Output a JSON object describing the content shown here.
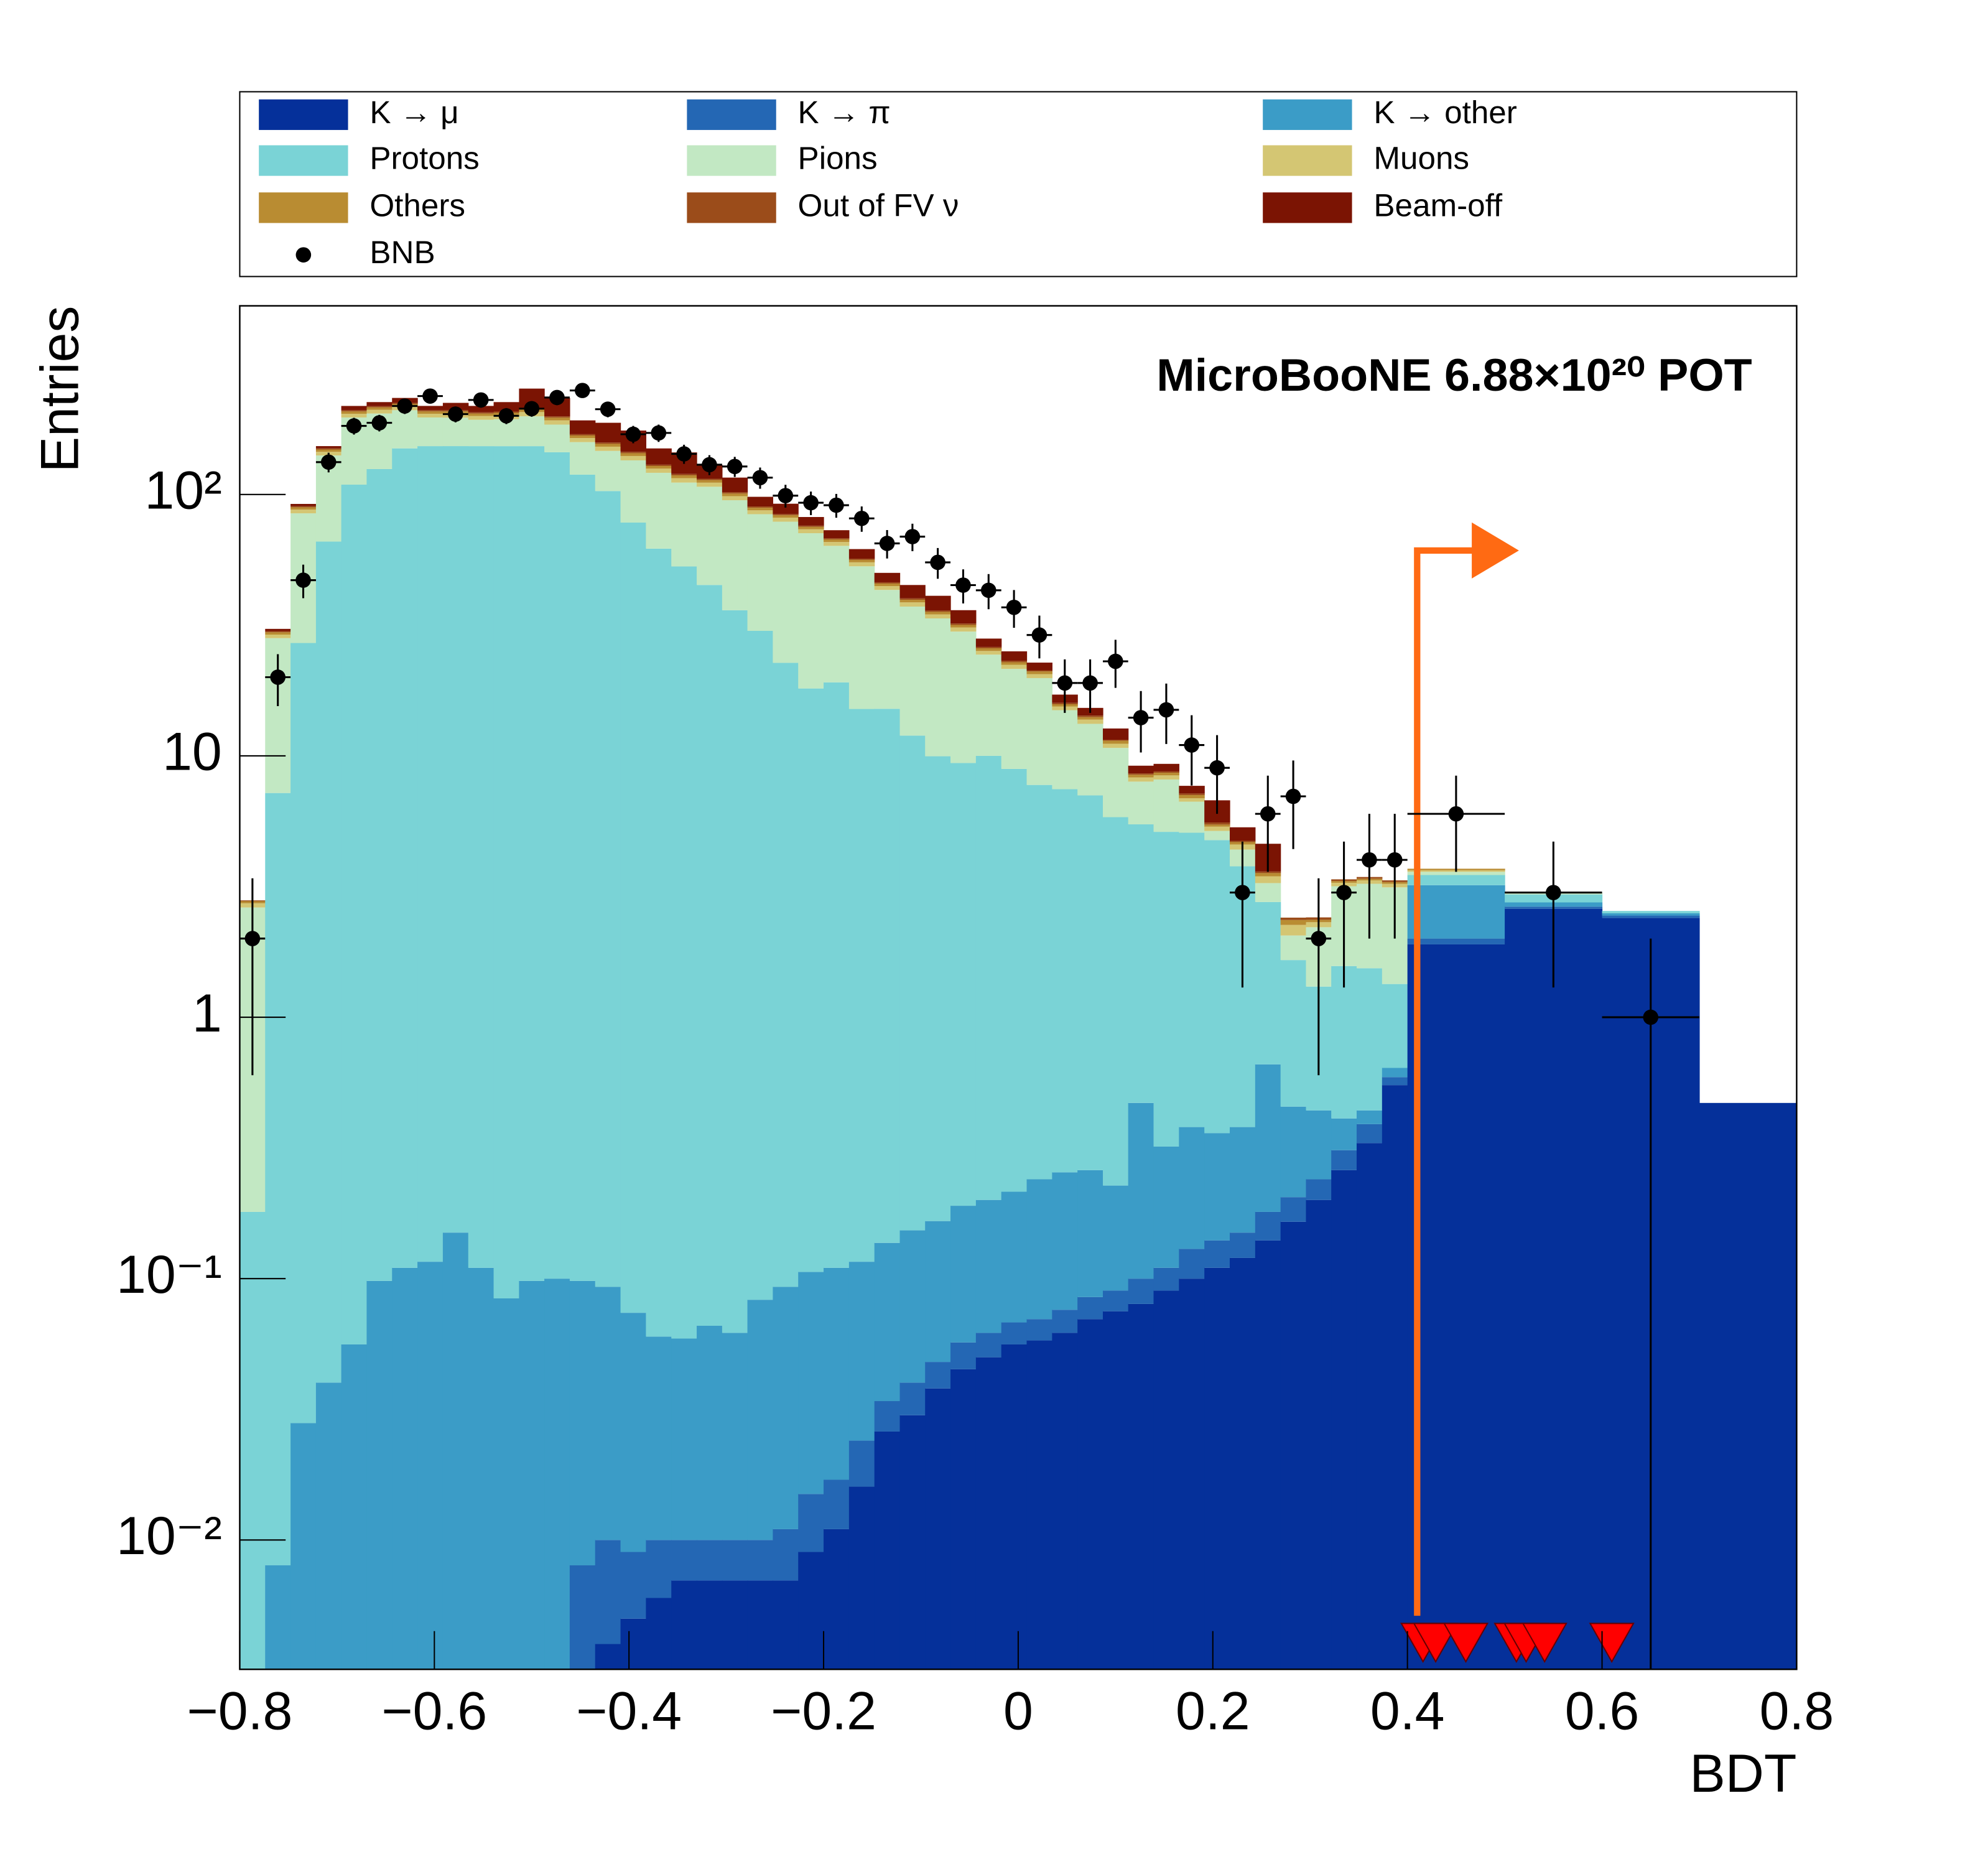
{
  "chart_data": {
    "type": "stacked_histogram",
    "xlabel": "BDT",
    "ylabel": "Entries",
    "annotation": "MicroBooNE 6.88×10²⁰ POT",
    "log_y": true,
    "legend": "top",
    "xlim": [
      -0.8,
      0.8
    ],
    "ylim": [
      0.0032,
      527
    ],
    "xticks": [
      {
        "value": -0.8,
        "label": "−0.8"
      },
      {
        "value": -0.6,
        "label": "−0.6"
      },
      {
        "value": -0.4,
        "label": "−0.4"
      },
      {
        "value": -0.2,
        "label": "−0.2"
      },
      0,
      0.2,
      0.4,
      0.6,
      0.8
    ],
    "yticks": [
      {
        "value": 0.01,
        "label": "10⁻²"
      },
      {
        "value": 0.1,
        "label": "10⁻¹"
      },
      1,
      10,
      {
        "value": 100,
        "label": "10²"
      }
    ],
    "bins": [
      -0.8,
      -0.7739,
      -0.7478,
      -0.7217,
      -0.6957,
      -0.6696,
      -0.6435,
      -0.6174,
      -0.5913,
      -0.5652,
      -0.5391,
      -0.513,
      -0.487,
      -0.4609,
      -0.4348,
      -0.4087,
      -0.3826,
      -0.3565,
      -0.3304,
      -0.3043,
      -0.2783,
      -0.2522,
      -0.2261,
      -0.2,
      -0.1739,
      -0.1478,
      -0.1217,
      -0.0957,
      -0.0696,
      -0.0435,
      -0.0174,
      0.0087,
      0.0348,
      0.0609,
      0.087,
      0.113,
      0.1391,
      0.1652,
      0.1913,
      0.2174,
      0.2435,
      0.2696,
      0.2957,
      0.3217,
      0.3478,
      0.3739,
      0.4,
      0.5,
      0.6,
      0.7,
      0.8
    ],
    "series": [
      {
        "name": "K → μ",
        "color": "#05309a",
        "values": [
          0,
          0,
          0,
          0,
          0,
          0,
          0,
          0,
          0,
          0,
          0,
          0,
          0,
          0.003,
          0.004,
          0.005,
          0.006,
          0.007,
          0.007,
          0.007,
          0.007,
          0.007,
          0.009,
          0.011,
          0.016,
          0.026,
          0.03,
          0.038,
          0.045,
          0.05,
          0.056,
          0.058,
          0.062,
          0.07,
          0.075,
          0.08,
          0.09,
          0.1,
          0.11,
          0.12,
          0.14,
          0.165,
          0.2,
          0.26,
          0.33,
          0.55,
          1.9,
          2.6,
          2.4,
          0.47
        ]
      },
      {
        "name": "K → π",
        "color": "#2467b4",
        "values": [
          0,
          0,
          0,
          0,
          0,
          0,
          0,
          0,
          0,
          0,
          0,
          0.003,
          0,
          0.005,
          0.006,
          0.004,
          0.004,
          0.003,
          0.003,
          0.003,
          0.003,
          0.004,
          0.006,
          0.006,
          0.008,
          0.008,
          0.01,
          0.01,
          0.012,
          0.012,
          0.012,
          0.012,
          0.014,
          0.015,
          0.015,
          0.02,
          0.02,
          0.03,
          0.03,
          0.03,
          0.04,
          0.04,
          0.04,
          0.05,
          0.06,
          0.04,
          0.1,
          0.05,
          0.05,
          0
        ]
      },
      {
        "name": "K → other",
        "color": "#3b9cc7",
        "values": [
          0,
          0.008,
          0.028,
          0.04,
          0.056,
          0.098,
          0.11,
          0.116,
          0.15,
          0.11,
          0.084,
          0.095,
          0.1,
          0.09,
          0.083,
          0.065,
          0.05,
          0.049,
          0.056,
          0.052,
          0.073,
          0.082,
          0.091,
          0.093,
          0.092,
          0.103,
          0.113,
          0.118,
          0.133,
          0.138,
          0.147,
          0.17,
          0.179,
          0.175,
          0.137,
          0.37,
          0.21,
          0.25,
          0.22,
          0.23,
          0.48,
          0.25,
          0.2,
          0.1,
          0.05,
          0.05,
          1.2,
          0.1,
          0.05,
          0
        ]
      },
      {
        "name": "Protons",
        "color": "#7ad3d6",
        "values": [
          0.18,
          7.2,
          27,
          66,
          109,
          125,
          150,
          153,
          153,
          153,
          153,
          153,
          145,
          119,
          103,
          78,
          62,
          53,
          45,
          36,
          30,
          22.6,
          18,
          19,
          15,
          15,
          11.8,
          9.8,
          9.2,
          9.8,
          8.7,
          7.5,
          7.2,
          6.8,
          5.6,
          5.0,
          4.8,
          4.7,
          4.4,
          3.4,
          2.1,
          1.2,
          0.87,
          1.16,
          1.1,
          0.7,
          0.3,
          0.2,
          0.05,
          0
        ]
      },
      {
        "name": "Pions",
        "color": "#c2e8c3",
        "values": [
          2.45,
          21,
          57.7,
          75,
          88,
          79,
          60,
          44,
          43.6,
          40,
          41,
          46,
          40,
          39.5,
          43.7,
          57,
          59,
          58,
          62,
          59,
          54,
          56,
          53,
          44.5,
          38,
          28,
          25.3,
          23.6,
          20.5,
          14.4,
          12.6,
          12.1,
          7.5,
          6.2,
          4.9,
          2.5,
          3.0,
          1.6,
          0.4,
          0.6,
          0.5,
          0.4,
          0.9,
          1.6,
          1.7,
          1.8,
          0.1,
          0.05,
          0,
          0
        ]
      },
      {
        "name": "Muons",
        "color": "#d4c673",
        "values": [
          0.1,
          0.9,
          2.8,
          4.6,
          6.5,
          6.8,
          7,
          6.5,
          6.7,
          6.5,
          6.8,
          7.6,
          7,
          5.8,
          5.6,
          5.3,
          4.5,
          4.4,
          3.9,
          3.5,
          2.9,
          2.8,
          2.5,
          2.2,
          1.9,
          1.5,
          1.4,
          1.2,
          1.1,
          0.8,
          0.8,
          0.7,
          0.5,
          0.5,
          0.4,
          0.3,
          0.3,
          0.2,
          0.2,
          0.2,
          0.2,
          0.2,
          0.1,
          0.1,
          0.1,
          0.1,
          0.05,
          0,
          0,
          0
        ]
      },
      {
        "name": "Others",
        "color": "#b98c32",
        "values": [
          0.05,
          0.6,
          1.8,
          3,
          4.4,
          4.5,
          4.7,
          4.4,
          4.5,
          4.4,
          4.5,
          5,
          4.7,
          3.8,
          3.8,
          3.5,
          3,
          2.9,
          2.6,
          2.3,
          2,
          1.8,
          1.6,
          1.5,
          1.2,
          1,
          0.9,
          0.8,
          0.7,
          0.6,
          0.5,
          0.5,
          0.3,
          0.3,
          0.3,
          0.2,
          0.2,
          0.2,
          0.1,
          0.1,
          0.1,
          0.1,
          0.05,
          0.05,
          0.05,
          0.05,
          0.05,
          0,
          0,
          0
        ]
      },
      {
        "name": "Out of FV ν",
        "color": "#9b4c1a",
        "values": [
          0.02,
          0.3,
          0.9,
          1.5,
          2.2,
          2.3,
          2.3,
          2.2,
          2.2,
          2.2,
          2.3,
          2.5,
          2.3,
          1.9,
          1.9,
          1.8,
          1.5,
          1.5,
          1.3,
          1.2,
          1,
          0.9,
          0.8,
          0.7,
          0.6,
          0.5,
          0.5,
          0.4,
          0.4,
          0.3,
          0.3,
          0.2,
          0.2,
          0.2,
          0.1,
          0.1,
          0.1,
          0.1,
          0.1,
          0.05,
          0.05,
          0.05,
          0.05,
          0.05,
          0.05,
          0.05,
          0,
          0,
          0,
          0
        ]
      },
      {
        "name": "Beam-off",
        "color": "#7b1403",
        "values": [
          0,
          0.6,
          1.8,
          3,
          8,
          8,
          10,
          8,
          14,
          12,
          18,
          40,
          35,
          22,
          30,
          30,
          20,
          25,
          15,
          14,
          8,
          8,
          6,
          5,
          5,
          4,
          5,
          5,
          4,
          2,
          2,
          1.5,
          1.2,
          1,
          1.2,
          0.6,
          0.6,
          0.5,
          1.2,
          0.6,
          1,
          0,
          0,
          0,
          0,
          0,
          0,
          0,
          0,
          0
        ]
      }
    ],
    "data": {
      "name": "BNB",
      "color": "#000000",
      "values": [
        2,
        20,
        47,
        133,
        183,
        188,
        218,
        238,
        203,
        230,
        200,
        213,
        235,
        250,
        212,
        170,
        172,
        143,
        130,
        128,
        116,
        99,
        93,
        91,
        81,
        65,
        69,
        55,
        45,
        43,
        37,
        29,
        19,
        19,
        23,
        14,
        15,
        11,
        9,
        3,
        6,
        7,
        2,
        3,
        4,
        4,
        6,
        3,
        1,
        null
      ],
      "errors": [
        1.4,
        4.5,
        6.9,
        11.5,
        13.5,
        13.7,
        14.8,
        15.4,
        14.2,
        15.2,
        14.1,
        14.6,
        15.3,
        15.8,
        14.6,
        13,
        13.1,
        12,
        11.4,
        11.3,
        10.8,
        9.9,
        9.6,
        9.5,
        9,
        8.1,
        8.3,
        7.4,
        6.7,
        6.6,
        6.1,
        5.4,
        4.4,
        4.4,
        4.8,
        3.7,
        3.9,
        3.3,
        3,
        1.7,
        2.4,
        2.6,
        1.4,
        1.7,
        2,
        2,
        2.4,
        1.7,
        1,
        null
      ]
    },
    "event_markers": {
      "color": "#ff0000",
      "x": [
        0.416,
        0.429,
        0.46,
        0.512,
        0.522,
        0.541,
        0.61
      ]
    },
    "cut": {
      "x": 0.41,
      "color": "#ff6a13"
    }
  }
}
